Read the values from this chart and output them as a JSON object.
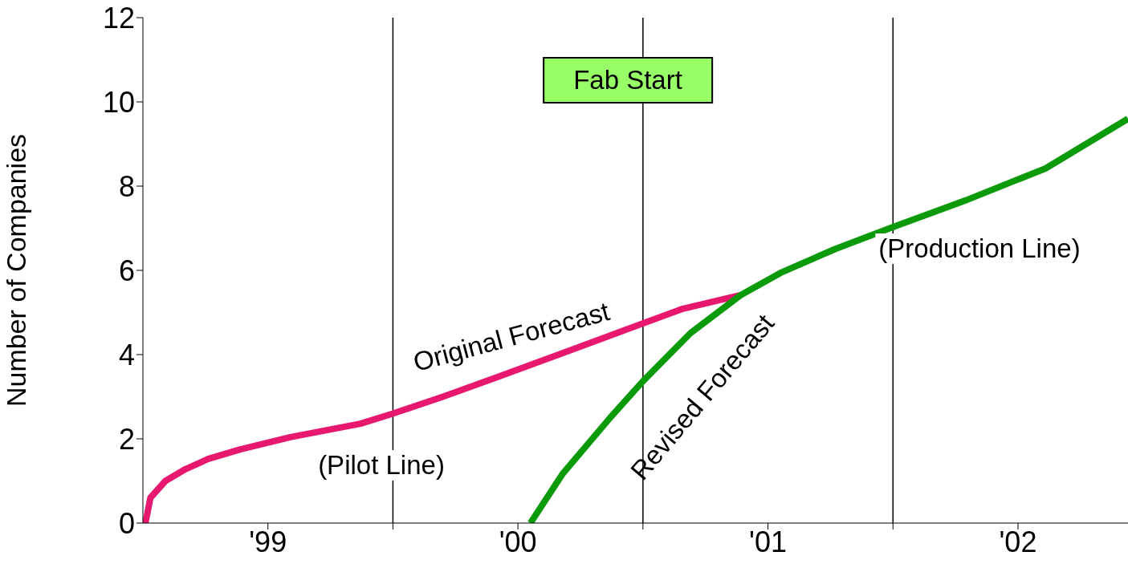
{
  "chart_data": {
    "type": "line",
    "ylabel": "Number of Companies",
    "xlim": [
      1998.5,
      2002.44
    ],
    "xticks": [
      {
        "value": 1999,
        "label": "'99"
      },
      {
        "value": 1999.5,
        "label": null
      },
      {
        "value": 2000,
        "label": "'00"
      },
      {
        "value": 2000.5,
        "label": null
      },
      {
        "value": 2001,
        "label": "'01"
      },
      {
        "value": 2001.5,
        "label": null
      },
      {
        "value": 2002,
        "label": "'02"
      }
    ],
    "ylim": [
      0,
      12
    ],
    "yticks": [
      0,
      2,
      4,
      6,
      8,
      10,
      12
    ],
    "ref_lines": [
      {
        "axis": "x",
        "value": 1999.5,
        "color": "#000000"
      },
      {
        "axis": "x",
        "value": 2000.5,
        "color": "#000000"
      },
      {
        "axis": "x",
        "value": 2001.5,
        "color": "#000000"
      }
    ],
    "series": [
      {
        "name": "Original Forecast",
        "color": "#e8176f",
        "x": [
          1998.51,
          1998.53,
          1998.59,
          1998.67,
          1998.76,
          1998.89,
          1999.09,
          1999.37,
          1999.5,
          1999.7,
          1999.92,
          2000.18,
          2000.44,
          2000.66,
          2000.89
        ],
        "values": [
          0,
          0.6,
          1.0,
          1.28,
          1.52,
          1.75,
          2.04,
          2.36,
          2.6,
          3.0,
          3.47,
          4.04,
          4.61,
          5.09,
          5.41
        ]
      },
      {
        "name": "Revised Forecast",
        "color": "#0a9a0a",
        "x": [
          2000.05,
          2000.18,
          2000.37,
          2000.5,
          2000.69,
          2000.89,
          2001.05,
          2001.27,
          2001.5,
          2001.79,
          2002.11,
          2002.44
        ],
        "values": [
          0,
          1.18,
          2.51,
          3.37,
          4.51,
          5.41,
          5.94,
          6.51,
          7.03,
          7.66,
          8.42,
          9.6
        ]
      }
    ],
    "annotations": [
      "Fab Start",
      "(Pilot Line)",
      "(Production Line)"
    ]
  }
}
